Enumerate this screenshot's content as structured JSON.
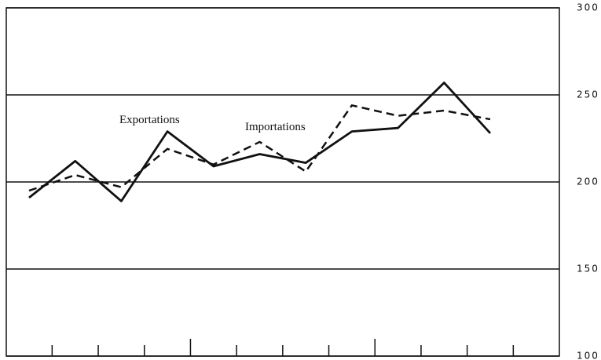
{
  "chart_data": {
    "type": "line",
    "categories": [
      null,
      null,
      null,
      null,
      null,
      null,
      null,
      null,
      null,
      null,
      null
    ],
    "series": [
      {
        "name": "Exportations",
        "color": "#111111",
        "dash": false,
        "values": [
          191,
          212,
          189,
          229,
          209,
          216,
          211,
          229,
          231,
          257,
          228
        ]
      },
      {
        "name": "Importations",
        "color": "#111111",
        "dash": true,
        "values": [
          195,
          204,
          197,
          219,
          210,
          223,
          206,
          244,
          238,
          241,
          236
        ]
      }
    ],
    "ylim": [
      100,
      300
    ],
    "yticks": [
      100,
      150,
      200,
      250,
      300
    ],
    "grid": true,
    "y_axis_side": "right"
  }
}
